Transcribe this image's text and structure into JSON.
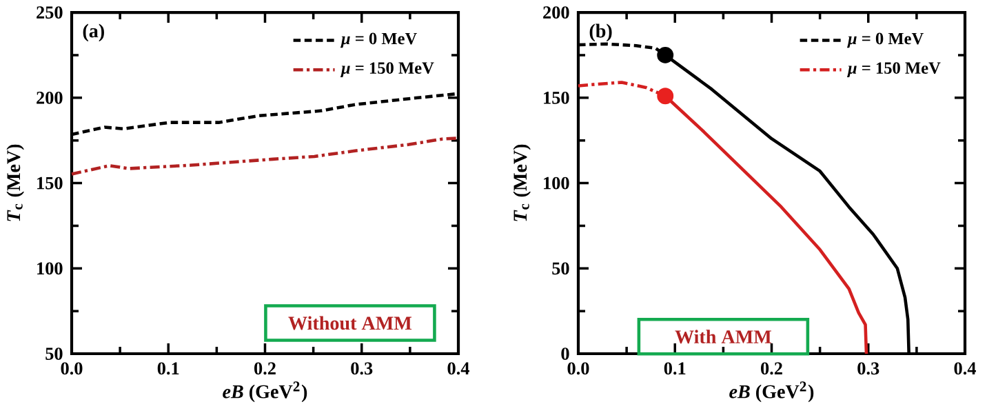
{
  "chart_data": [
    {
      "type": "line",
      "xlabel": "*eB* (GeV$^{2}$)",
      "ylabel": "*T*$_{c}$ (MeV)",
      "annotations": [
        "(a)",
        "Without AMM"
      ],
      "xlim": [
        0,
        0.4
      ],
      "ylim": [
        50,
        250
      ],
      "xticks": [
        {
          "value": 0,
          "label": "0.0"
        },
        0.1,
        0.2,
        0.3,
        0.4
      ],
      "yticks": [
        50,
        100,
        150,
        200,
        250
      ],
      "legend": "top right",
      "grid": false,
      "series": [
        {
          "name": "*μ* = 0 MeV",
          "color": "#000000",
          "line_style": "dashed",
          "x": [
            0,
            0.034,
            0.054,
            0.101,
            0.152,
            0.194,
            0.259,
            0.293,
            0.358,
            0.4
          ],
          "values": [
            178.5,
            182.7,
            181.8,
            185.5,
            185.5,
            189.5,
            192.4,
            196,
            200,
            202.4
          ]
        },
        {
          "name": "*μ* = 150 MeV",
          "color": "#b22222",
          "line_style": "dashdot",
          "x": [
            0,
            0.039,
            0.059,
            0.124,
            0.208,
            0.251,
            0.293,
            0.349,
            0.383,
            0.4
          ],
          "values": [
            155.3,
            160.2,
            158.5,
            160.5,
            164,
            165.6,
            168.9,
            172.6,
            175.8,
            176.3
          ]
        }
      ]
    },
    {
      "type": "line",
      "xlabel": "*eB* (GeV$^{2}$)",
      "ylabel": "*T*$_{c}$ (MeV)",
      "annotations": [
        "(b)",
        "With AMM"
      ],
      "xlim": [
        0,
        0.4
      ],
      "ylim": [
        0,
        200
      ],
      "xticks": [
        {
          "value": 0,
          "label": "0.0"
        },
        0.1,
        0.2,
        0.3,
        0.4
      ],
      "yticks": [
        0,
        50,
        100,
        150,
        200
      ],
      "legend": "top right",
      "grid": false,
      "series": [
        {
          "name": "*μ* = 0 MeV",
          "color": "#000000",
          "line_style": "dashed",
          "x": [
            0,
            0.03,
            0.06,
            0.08,
            0.09
          ],
          "values": [
            181,
            181.5,
            180.5,
            179,
            175
          ]
        },
        {
          "name": "*μ* = 150 MeV",
          "color": "#d42020",
          "line_style": "dashdot",
          "x": [
            0,
            0.02,
            0.045,
            0.07,
            0.09
          ],
          "values": [
            157,
            158,
            159,
            156,
            151
          ]
        },
        {
          "color": "#000000",
          "line_style": "solid",
          "x": [
            0.09,
            0.138,
            0.2,
            0.25,
            0.28,
            0.305,
            0.33,
            0.338,
            0.341,
            0.342
          ],
          "values": [
            175,
            155,
            126,
            107,
            86,
            70,
            50,
            33,
            20,
            0
          ]
        },
        {
          "color": "#d42020",
          "line_style": "solid",
          "x": [
            0.09,
            0.13,
            0.17,
            0.21,
            0.25,
            0.28,
            0.29,
            0.297,
            0.298
          ],
          "values": [
            151,
            130,
            108,
            86,
            61,
            38,
            24,
            17,
            0
          ]
        },
        {
          "type": "scatter",
          "marker": "circle",
          "color": "#000000",
          "x": [
            0.09
          ],
          "values": [
            175
          ]
        },
        {
          "type": "scatter",
          "marker": "circle",
          "color": "#e8211f",
          "x": [
            0.09
          ],
          "values": [
            151
          ]
        }
      ]
    }
  ]
}
